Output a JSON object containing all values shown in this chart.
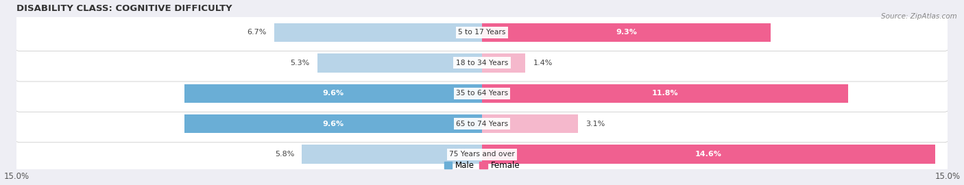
{
  "title": "DISABILITY CLASS: COGNITIVE DIFFICULTY",
  "source": "Source: ZipAtlas.com",
  "categories": [
    "5 to 17 Years",
    "18 to 34 Years",
    "35 to 64 Years",
    "65 to 74 Years",
    "75 Years and over"
  ],
  "male_values": [
    6.7,
    5.3,
    9.6,
    9.6,
    5.8
  ],
  "female_values": [
    9.3,
    1.4,
    11.8,
    3.1,
    14.6
  ],
  "male_color_dark": "#6aaed6",
  "male_color_light": "#b8d4e8",
  "female_color_dark": "#f06090",
  "female_color_light": "#f5b8cc",
  "dark_threshold": 7.0,
  "max_val": 15.0,
  "bar_height": 0.62,
  "row_bg_color": "#e8e8ee",
  "row_border_color": "#cccccc",
  "bg_color": "#eeeef4",
  "title_fontsize": 9.5,
  "label_fontsize": 8.0,
  "tick_fontsize": 8.5,
  "legend_fontsize": 8.5
}
